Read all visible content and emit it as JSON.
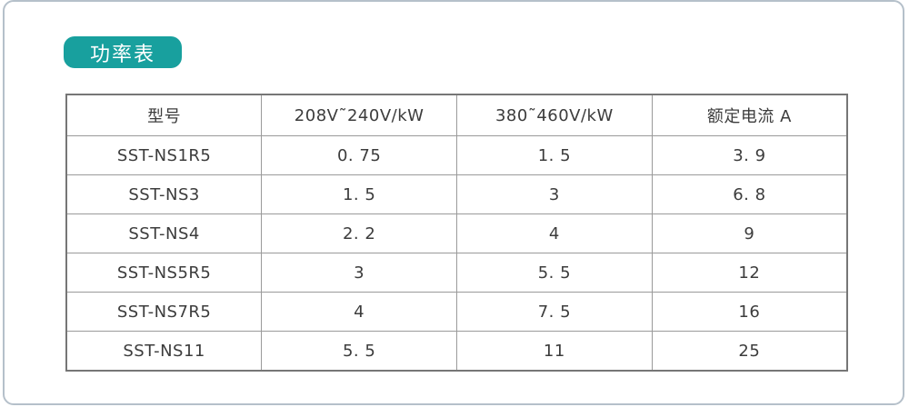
{
  "page": {
    "badge_label": "功率表",
    "colors": {
      "badge_bg": "#18a09e",
      "page_border": "#b5c0ca",
      "table_border": "#767676",
      "grid_line": "#9a9a9a",
      "text": "#3c3c3c"
    }
  },
  "table": {
    "columns": [
      "型号",
      "208V˜240V/kW",
      "380˜460V/kW",
      "额定电流 A"
    ],
    "rows": [
      [
        "SST-NS1R5",
        "0. 75",
        "1. 5",
        "3. 9"
      ],
      [
        "SST-NS3",
        "1. 5",
        "3",
        "6. 8"
      ],
      [
        "SST-NS4",
        "2. 2",
        "4",
        "9"
      ],
      [
        "SST-NS5R5",
        "3",
        "5. 5",
        "12"
      ],
      [
        "SST-NS7R5",
        "4",
        "7. 5",
        "16"
      ],
      [
        "SST-NS11",
        "5. 5",
        "11",
        "25"
      ]
    ]
  },
  "chart_data": {
    "type": "table",
    "title": "功率表",
    "columns": [
      "型号",
      "208V~240V/kW",
      "380~460V/kW",
      "额定电流 A"
    ],
    "models": [
      "SST-NS1R5",
      "SST-NS3",
      "SST-NS4",
      "SST-NS5R5",
      "SST-NS7R5",
      "SST-NS11"
    ],
    "kw_208v_240v": [
      0.75,
      1.5,
      2.2,
      3,
      4,
      5.5
    ],
    "kw_380_460v": [
      1.5,
      3,
      4,
      5.5,
      7.5,
      11
    ],
    "rated_current_a": [
      3.9,
      6.8,
      9,
      12,
      16,
      25
    ]
  }
}
